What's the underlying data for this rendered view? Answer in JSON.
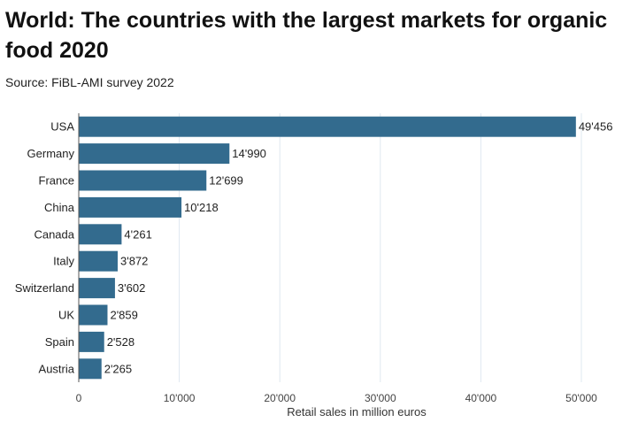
{
  "header": {
    "title": "World: The countries with the largest markets for organic food 2020",
    "subtitle": "Source: FiBL-AMI survey 2022"
  },
  "colors": {
    "bar": "#336b8e",
    "grid": "#dfe8f0",
    "axis": "#555555"
  },
  "chart_data": {
    "type": "bar",
    "orientation": "horizontal",
    "title": "World: The countries with the largest markets for organic food 2020",
    "subtitle": "Source: FiBL-AMI survey 2022",
    "xlabel": "Retail sales in million euros",
    "ylabel": "",
    "xlim": [
      0,
      50000
    ],
    "x_ticks": [
      0,
      10000,
      20000,
      30000,
      40000,
      50000
    ],
    "x_tick_labels": [
      "0",
      "10'000",
      "20'000",
      "30'000",
      "40'000",
      "50'000"
    ],
    "grid": true,
    "categories": [
      "USA",
      "Germany",
      "France",
      "China",
      "Canada",
      "Italy",
      "Switzerland",
      "UK",
      "Spain",
      "Austria"
    ],
    "values": [
      49456,
      14990,
      12699,
      10218,
      4261,
      3872,
      3602,
      2859,
      2528,
      2265
    ],
    "value_labels": [
      "49'456",
      "14'990",
      "12'699",
      "10'218",
      "4'261",
      "3'872",
      "3'602",
      "2'859",
      "2'528",
      "2'265"
    ]
  }
}
